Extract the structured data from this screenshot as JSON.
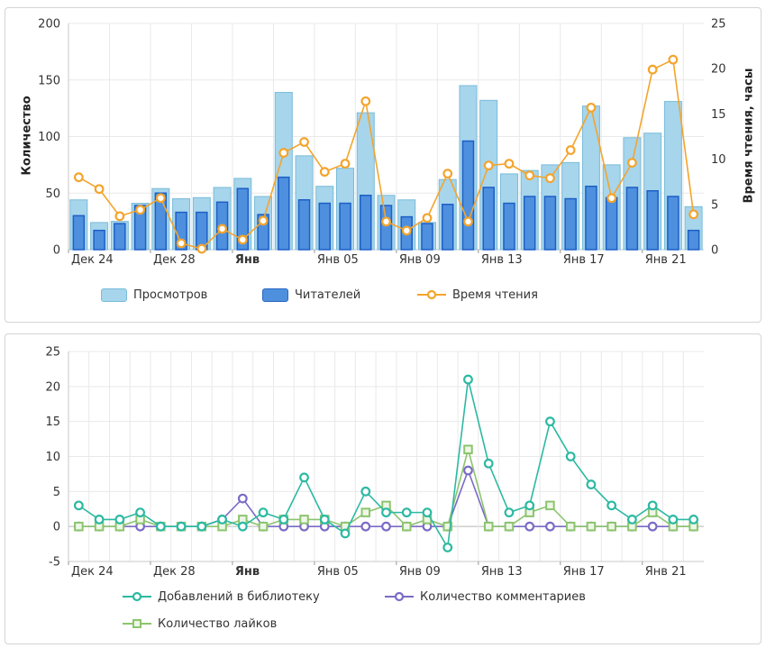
{
  "colors": {
    "views_fill": "#a7d5eb",
    "views_stroke": "#79bcd9",
    "readers_fill": "#4e90de",
    "readers_stroke": "#1d5fc6",
    "reading_time": "#f4a42c",
    "library": "#2cb9a2",
    "comments": "#7a6bc5",
    "likes": "#8cc46f",
    "likes_fill": "#eef7e6",
    "grid": "#e9e9e9",
    "axis": "#c9c9c9",
    "zero_line": "#b5b5b5",
    "tick_text": "#333333",
    "marker_fill": "#ffffff"
  },
  "chart_data": [
    {
      "type": "bar",
      "title": "",
      "categories": [
        "Дек 24",
        "Дек 25",
        "Дек 26",
        "Дек 27",
        "Дек 28",
        "Дек 29",
        "Дек 30",
        "Дек 31",
        "Янв 01",
        "Янв 02",
        "Янв 03",
        "Янв 04",
        "Янв 05",
        "Янв 06",
        "Янв 07",
        "Янв 08",
        "Янв 09",
        "Янв 10",
        "Янв 11",
        "Янв 12",
        "Янв 13",
        "Янв 14",
        "Янв 15",
        "Янв 16",
        "Янв 17",
        "Янв 18",
        "Янв 19",
        "Янв 20",
        "Янв 21",
        "Янв 22",
        "Янв 23"
      ],
      "x_tick_indices": [
        0,
        4,
        8,
        12,
        16,
        20,
        24,
        28
      ],
      "x_tick_labels": [
        "Дек 24",
        "Дек 28",
        "Янв",
        "Янв 05",
        "Янв 09",
        "Янв 13",
        "Янв 17",
        "Янв 21"
      ],
      "x_bold_tick": "Янв",
      "ylabel": "Количество",
      "ylim": [
        0,
        200
      ],
      "y_ticks": [
        0,
        50,
        100,
        150,
        200
      ],
      "ylabel_right": "Время чтения, часы",
      "ylim_right": [
        0,
        25
      ],
      "y_ticks_right": [
        0,
        5,
        10,
        15,
        20,
        25
      ],
      "grid": true,
      "legend_position": "bottom",
      "series": [
        {
          "name": "Просмотров",
          "type": "bar",
          "axis": "left",
          "values": [
            44,
            24,
            25,
            41,
            54,
            45,
            46,
            55,
            63,
            47,
            139,
            83,
            56,
            72,
            121,
            48,
            44,
            24,
            62,
            145,
            132,
            67,
            70,
            75,
            77,
            127,
            75,
            99,
            103,
            131,
            38
          ]
        },
        {
          "name": "Читателей",
          "type": "bar",
          "axis": "left",
          "values": [
            30,
            17,
            23,
            39,
            50,
            33,
            33,
            42,
            54,
            31,
            64,
            44,
            41,
            41,
            48,
            39,
            29,
            23,
            40,
            96,
            55,
            41,
            47,
            47,
            45,
            56,
            46,
            55,
            52,
            47,
            17
          ]
        },
        {
          "name": "Время чтения",
          "type": "line",
          "axis": "right",
          "marker": "circle",
          "values": [
            8.0,
            6.7,
            3.7,
            4.4,
            5.7,
            0.7,
            0.1,
            2.3,
            1.1,
            3.2,
            10.7,
            11.9,
            8.6,
            9.5,
            16.4,
            3.1,
            2.1,
            3.5,
            8.4,
            3.1,
            9.3,
            9.5,
            8.2,
            7.9,
            11.0,
            15.7,
            5.7,
            9.6,
            19.9,
            21.0,
            3.9
          ]
        }
      ]
    },
    {
      "type": "line",
      "title": "",
      "categories": [
        "Дек 24",
        "Дек 25",
        "Дек 26",
        "Дек 27",
        "Дек 28",
        "Дек 29",
        "Дек 30",
        "Дек 31",
        "Янв 01",
        "Янв 02",
        "Янв 03",
        "Янв 04",
        "Янв 05",
        "Янв 06",
        "Янв 07",
        "Янв 08",
        "Янв 09",
        "Янв 10",
        "Янв 11",
        "Янв 12",
        "Янв 13",
        "Янв 14",
        "Янв 15",
        "Янв 16",
        "Янв 17",
        "Янв 18",
        "Янв 19",
        "Янв 20",
        "Янв 21",
        "Янв 22",
        "Янв 23"
      ],
      "x_tick_indices": [
        0,
        4,
        8,
        12,
        16,
        20,
        24,
        28
      ],
      "x_tick_labels": [
        "Дек 24",
        "Дек 28",
        "Янв",
        "Янв 05",
        "Янв 09",
        "Янв 13",
        "Янв 17",
        "Янв 21"
      ],
      "x_bold_tick": "Янв",
      "ylim": [
        -5,
        25
      ],
      "y_ticks": [
        -5,
        0,
        5,
        10,
        15,
        20,
        25
      ],
      "grid": true,
      "legend_position": "bottom",
      "series": [
        {
          "name": "Добавлений в библиотеку",
          "type": "line",
          "marker": "circle",
          "values": [
            3,
            1,
            1,
            2,
            0,
            0,
            0,
            1,
            0,
            2,
            1,
            7,
            1,
            -1,
            5,
            2,
            2,
            2,
            -3,
            21,
            9,
            2,
            3,
            15,
            10,
            6,
            3,
            1,
            3,
            1,
            1
          ]
        },
        {
          "name": "Количество комментариев",
          "type": "line",
          "marker": "circle",
          "values": [
            0,
            0,
            0,
            0,
            0,
            0,
            0,
            1,
            4,
            0,
            0,
            0,
            0,
            0,
            0,
            0,
            0,
            0,
            0,
            8,
            0,
            0,
            0,
            0,
            0,
            0,
            0,
            0,
            0,
            0,
            0
          ]
        },
        {
          "name": "Количество лайков",
          "type": "line",
          "marker": "square",
          "values": [
            0,
            0,
            0,
            1,
            0,
            0,
            0,
            0,
            1,
            0,
            1,
            1,
            1,
            0,
            2,
            3,
            0,
            1,
            0,
            11,
            0,
            0,
            2,
            3,
            0,
            0,
            0,
            0,
            2,
            0,
            0
          ]
        }
      ]
    }
  ]
}
